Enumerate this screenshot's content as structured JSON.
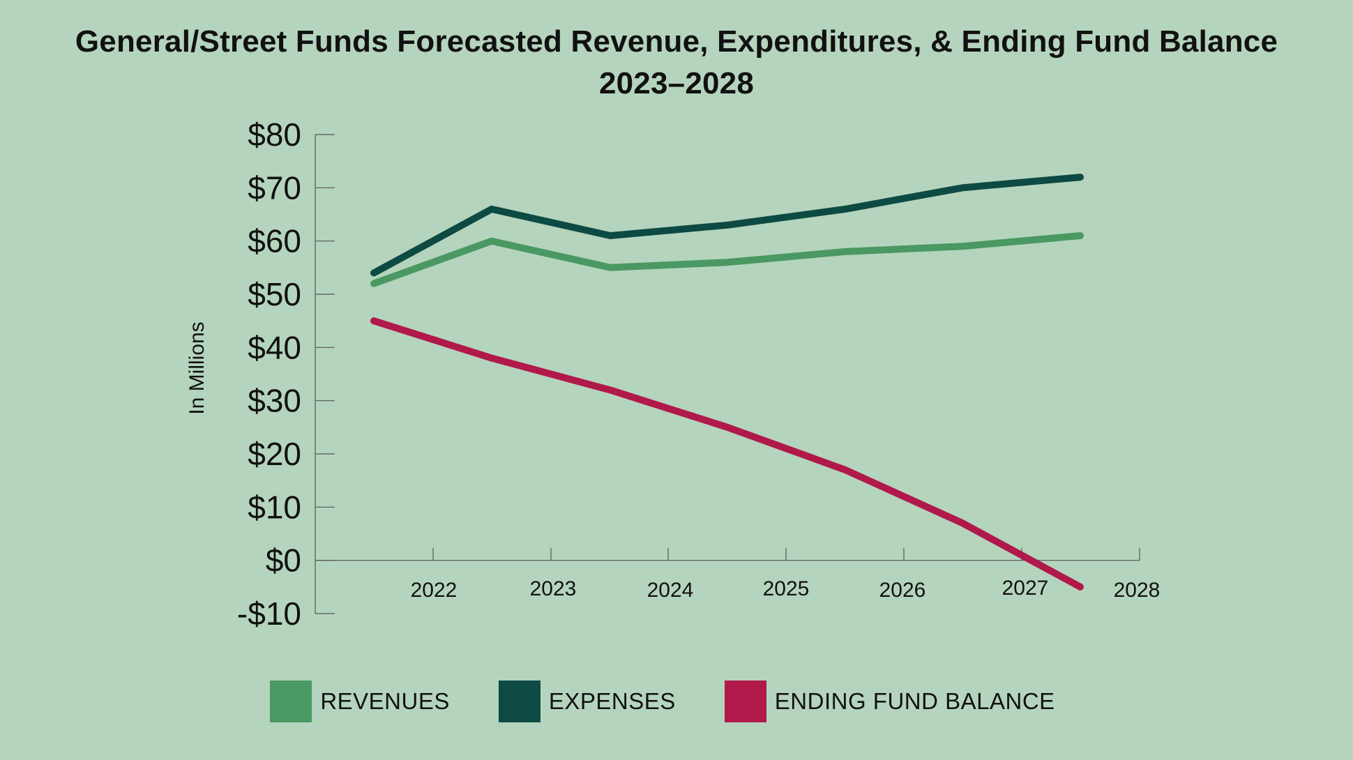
{
  "chart_data": {
    "type": "line",
    "title": "General/Street Funds Forecasted Revenue, Expenditures, & Ending Fund Balance",
    "subtitle": "2023–2028",
    "ylabel": "In Millions",
    "xlabel": "",
    "x_tick_labels": [
      "2022",
      "2023",
      "2024",
      "2025",
      "2026",
      "2027",
      "2028"
    ],
    "y_tick_labels": [
      "$80",
      "$70",
      "$60",
      "$50",
      "$40",
      "$30",
      "$20",
      "$10",
      "$0",
      "-$10"
    ],
    "y_ticks": [
      80,
      70,
      60,
      50,
      40,
      30,
      20,
      10,
      0,
      -10
    ],
    "ylim": [
      -10,
      80
    ],
    "grid": false,
    "legend_position": "bottom",
    "series": [
      {
        "name": "REVENUES",
        "color": "#4a9862",
        "values": [
          52,
          60,
          55,
          56,
          58,
          59,
          61
        ]
      },
      {
        "name": "EXPENSES",
        "color": "#0d4a43",
        "values": [
          54,
          66,
          61,
          63,
          66,
          70,
          72
        ]
      },
      {
        "name": "ENDING FUND BALANCE",
        "color": "#b0194a",
        "values": [
          45,
          38,
          32,
          25,
          17,
          7,
          -5
        ]
      }
    ]
  }
}
